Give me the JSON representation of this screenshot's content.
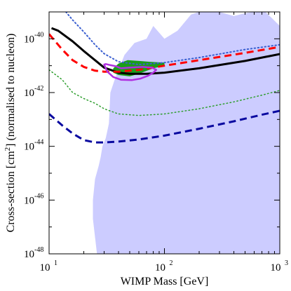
{
  "chart_data": {
    "type": "line",
    "xlabel": "WIMP Mass [GeV]",
    "ylabel_parts": [
      "Cross-section [cm",
      "2",
      "] (normalised to nucleon)"
    ],
    "x_scale": "log",
    "y_scale": "log",
    "xlim": [
      10,
      1000
    ],
    "ylim": [
      1e-48,
      1e-39
    ],
    "x_ticks": [
      {
        "value": 10,
        "base": "10",
        "exp": "1"
      },
      {
        "value": 100,
        "base": "10",
        "exp": "2"
      },
      {
        "value": 1000,
        "base": "10",
        "exp": "3"
      }
    ],
    "y_ticks": [
      {
        "value": 1e-40,
        "base": "10",
        "exp": "-40"
      },
      {
        "value": 1e-42,
        "base": "10",
        "exp": "-42"
      },
      {
        "value": 1e-44,
        "base": "10",
        "exp": "-44"
      },
      {
        "value": 1e-46,
        "base": "10",
        "exp": "-46"
      },
      {
        "value": 1e-48,
        "base": "10",
        "exp": "-48"
      }
    ],
    "grid": false,
    "legend": "none",
    "regions": [
      {
        "id": "lavender-region",
        "color": "#ccccff",
        "points": [
          [
            26,
            1e-48
          ],
          [
            24,
            2e-47
          ],
          [
            24,
            1e-46
          ],
          [
            25,
            6e-46
          ],
          [
            27,
            2e-45
          ],
          [
            28,
            4e-45
          ],
          [
            29,
            1e-44
          ],
          [
            31,
            2e-44
          ],
          [
            33,
            7e-44
          ],
          [
            34,
            1e-42
          ],
          [
            37,
            3e-42
          ],
          [
            45,
            2.5e-41
          ],
          [
            55,
            7e-41
          ],
          [
            70,
            1e-40
          ],
          [
            80,
            3e-40
          ],
          [
            100,
            1e-40
          ],
          [
            130,
            2e-40
          ],
          [
            170,
            8e-40
          ],
          [
            200,
            1e-39
          ],
          [
            300,
            1e-39
          ],
          [
            400,
            7e-40
          ],
          [
            500,
            9e-40
          ],
          [
            600,
            1e-39
          ],
          [
            750,
            1e-39
          ],
          [
            850,
            6e-40
          ],
          [
            1000,
            3e-40
          ],
          [
            1000,
            1e-48
          ]
        ]
      },
      {
        "id": "green-region",
        "color": "#1a9e1a",
        "points": [
          [
            36,
            8e-42
          ],
          [
            40,
            1.2e-41
          ],
          [
            48,
            1.6e-41
          ],
          [
            60,
            1.5e-41
          ],
          [
            75,
            1.4e-41
          ],
          [
            100,
            1.3e-41
          ],
          [
            100,
            1e-41
          ],
          [
            80,
            8e-42
          ],
          [
            60,
            5e-42
          ],
          [
            50,
            4e-42
          ],
          [
            40,
            4.5e-42
          ],
          [
            36,
            5.5e-42
          ]
        ]
      }
    ],
    "series": [
      {
        "id": "black-solid",
        "color": "#000000",
        "dash": "solid",
        "width": 3,
        "closed": false,
        "points": [
          [
            10.5,
            2.5e-40
          ],
          [
            12,
            2e-40
          ],
          [
            16,
            8e-41
          ],
          [
            20,
            3.5e-41
          ],
          [
            25,
            1.6e-41
          ],
          [
            30,
            8.5e-42
          ],
          [
            40,
            5.5e-42
          ],
          [
            50,
            5e-42
          ],
          [
            70,
            5e-42
          ],
          [
            100,
            5.5e-42
          ],
          [
            200,
            8e-42
          ],
          [
            500,
            1.5e-41
          ],
          [
            1000,
            2.7e-41
          ]
        ]
      },
      {
        "id": "red-dashed",
        "color": "#ff0000",
        "dash": "long",
        "width": 3,
        "closed": false,
        "points": [
          [
            10,
            1.5e-40
          ],
          [
            13,
            4e-41
          ],
          [
            16,
            1.6e-41
          ],
          [
            20,
            9e-42
          ],
          [
            25,
            6.5e-42
          ],
          [
            30,
            6e-42
          ],
          [
            40,
            6e-42
          ],
          [
            60,
            7e-42
          ],
          [
            100,
            1e-41
          ],
          [
            200,
            1.6e-41
          ],
          [
            500,
            3e-41
          ],
          [
            1000,
            5e-41
          ]
        ]
      },
      {
        "id": "blue-dotted",
        "color": "#3a5fd0",
        "dash": "dot",
        "width": 2,
        "closed": false,
        "points": [
          [
            14,
            1e-39
          ],
          [
            16,
            5e-40
          ],
          [
            20,
            1.8e-40
          ],
          [
            25,
            6e-41
          ],
          [
            30,
            2.8e-41
          ],
          [
            40,
            1.4e-41
          ],
          [
            60,
            1.1e-41
          ],
          [
            100,
            1.3e-41
          ],
          [
            200,
            2e-41
          ],
          [
            500,
            4e-41
          ],
          [
            1000,
            6e-41
          ]
        ]
      },
      {
        "id": "green-dotted",
        "color": "#2e9e2e",
        "dash": "dot",
        "width": 1.5,
        "closed": false,
        "points": [
          [
            10,
            7e-42
          ],
          [
            13,
            3e-42
          ],
          [
            16,
            1e-42
          ],
          [
            20,
            6e-43
          ],
          [
            25,
            4e-43
          ],
          [
            30,
            2.5e-43
          ],
          [
            40,
            1.6e-43
          ],
          [
            60,
            1.4e-43
          ],
          [
            100,
            1.6e-43
          ],
          [
            200,
            2.5e-43
          ],
          [
            400,
            4.5e-43
          ],
          [
            700,
            8e-43
          ],
          [
            1000,
            1.2e-42
          ]
        ]
      },
      {
        "id": "navy-dashed",
        "color": "#0a0aa0",
        "dash": "long",
        "width": 3,
        "closed": false,
        "points": [
          [
            10,
            1.6e-43
          ],
          [
            13,
            6e-44
          ],
          [
            16,
            3e-44
          ],
          [
            20,
            1.7e-44
          ],
          [
            25,
            1.4e-44
          ],
          [
            30,
            1.4e-44
          ],
          [
            40,
            1.5e-44
          ],
          [
            60,
            1.8e-44
          ],
          [
            100,
            2.5e-44
          ],
          [
            200,
            4.5e-44
          ],
          [
            400,
            8.5e-44
          ],
          [
            700,
            1.5e-43
          ],
          [
            1000,
            2.1e-43
          ]
        ]
      },
      {
        "id": "magenta-contour",
        "color": "#b030e0",
        "dash": "solid",
        "width": 2.5,
        "closed": true,
        "points": [
          [
            30,
            1.1e-41
          ],
          [
            32,
            6e-42
          ],
          [
            36,
            3.8e-42
          ],
          [
            42,
            3e-42
          ],
          [
            52,
            2.9e-42
          ],
          [
            62,
            3.3e-42
          ],
          [
            72,
            4.2e-42
          ],
          [
            80,
            5.5e-42
          ],
          [
            85,
            7e-42
          ],
          [
            78,
            8.5e-42
          ],
          [
            65,
            9e-42
          ],
          [
            50,
            8.5e-42
          ],
          [
            42,
            8e-42
          ],
          [
            38,
            9.5e-42
          ],
          [
            34,
            1.05e-41
          ],
          [
            31,
            1.15e-41
          ]
        ]
      }
    ]
  }
}
